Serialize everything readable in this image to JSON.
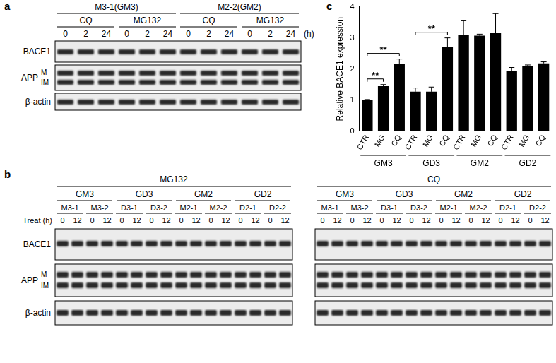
{
  "panel_labels": [
    "a",
    "b",
    "c"
  ],
  "panel_a": {
    "groups": [
      {
        "name": "M3-1(GM3)",
        "treatments": [
          "CQ",
          "MG132"
        ]
      },
      {
        "name": "M2-2(GM2)",
        "treatments": [
          "CQ",
          "MG132"
        ]
      }
    ],
    "times": [
      0,
      2,
      24
    ],
    "time_unit": "(h)",
    "rows": [
      "BACE1",
      "APP",
      "β-actin"
    ],
    "app_bands": [
      "M",
      "IM"
    ]
  },
  "panel_b": {
    "blots": [
      {
        "treatment": "MG132",
        "groups": [
          {
            "name": "GM3",
            "clones": [
              "M3-1",
              "M3-2"
            ]
          },
          {
            "name": "GD3",
            "clones": [
              "D3-1",
              "D3-2"
            ]
          },
          {
            "name": "GM2",
            "clones": [
              "M2-1",
              "M2-2"
            ]
          },
          {
            "name": "GD2",
            "clones": [
              "D2-1",
              "D2-2"
            ]
          }
        ]
      },
      {
        "treatment": "CQ",
        "groups": [
          {
            "name": "GM3",
            "clones": [
              "M3-1",
              "M3-2"
            ]
          },
          {
            "name": "GD3",
            "clones": [
              "D3-1",
              "D3-2"
            ]
          },
          {
            "name": "GM2",
            "clones": [
              "M2-1",
              "M2-2"
            ]
          },
          {
            "name": "GD2",
            "clones": [
              "D2-1",
              "D2-2"
            ]
          }
        ]
      }
    ],
    "times": [
      0,
      12
    ],
    "time_label": "Treat (h)",
    "rows": [
      "BACE1",
      "APP",
      "β-actin"
    ],
    "app_bands": [
      "M",
      "IM"
    ]
  },
  "chart_data": {
    "type": "bar",
    "y_label": "Relative BACE1 expression",
    "categories": [
      "CTR",
      "MG",
      "CQ",
      "CTR",
      "MG",
      "CQ",
      "CTR",
      "MG",
      "CQ",
      "CTR",
      "MG",
      "CQ"
    ],
    "groups": [
      "GM3",
      "GD3",
      "GM2",
      "GD2"
    ],
    "values": [
      1.0,
      1.45,
      2.15,
      1.27,
      1.27,
      2.7,
      3.1,
      3.07,
      3.15,
      1.93,
      2.1,
      2.18
    ],
    "errors": [
      0.02,
      0.05,
      0.17,
      0.12,
      0.15,
      0.3,
      0.45,
      0.05,
      0.63,
      0.12,
      0.03,
      0.05
    ],
    "color": "#000000",
    "ylim": [
      0,
      4
    ],
    "yticks": [
      0,
      1,
      2,
      3,
      4
    ],
    "grid": false,
    "annotations": [
      {
        "text": "**",
        "from": 0,
        "to": 1
      },
      {
        "text": "**",
        "from": 0,
        "to": 2
      },
      {
        "text": "**",
        "from": 3,
        "to": 5
      }
    ]
  }
}
